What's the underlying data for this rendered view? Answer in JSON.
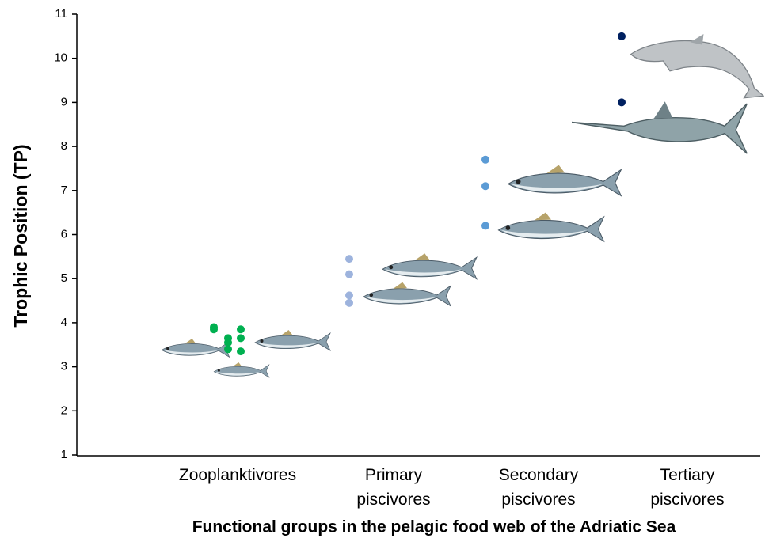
{
  "chart_data": {
    "type": "scatter",
    "y_label": "Trophic Position (TP)",
    "x_label": "Functional groups in the pelagic food web of the Adriatic Sea",
    "categories": [
      "Zooplanktivores",
      "Primary piscivores",
      "Secondary piscivores",
      "Tertiary piscivores"
    ],
    "series": [
      {
        "color": "#00b050",
        "values": [
          3.9,
          3.85,
          3.65,
          3.55,
          3.4,
          3.85,
          3.65,
          3.35
        ]
      },
      {
        "color": "#9db3dd",
        "values": [
          5.45,
          5.1,
          4.62,
          4.45
        ]
      },
      {
        "color": "#5b9bd5",
        "values": [
          7.7,
          7.1,
          6.2
        ]
      },
      {
        "color": "#002060",
        "values": [
          10.5,
          9.0
        ]
      }
    ],
    "ylim": [
      1,
      11
    ],
    "yticks": [
      1,
      2,
      3,
      4,
      5,
      6,
      7,
      8,
      9,
      10,
      11
    ]
  }
}
